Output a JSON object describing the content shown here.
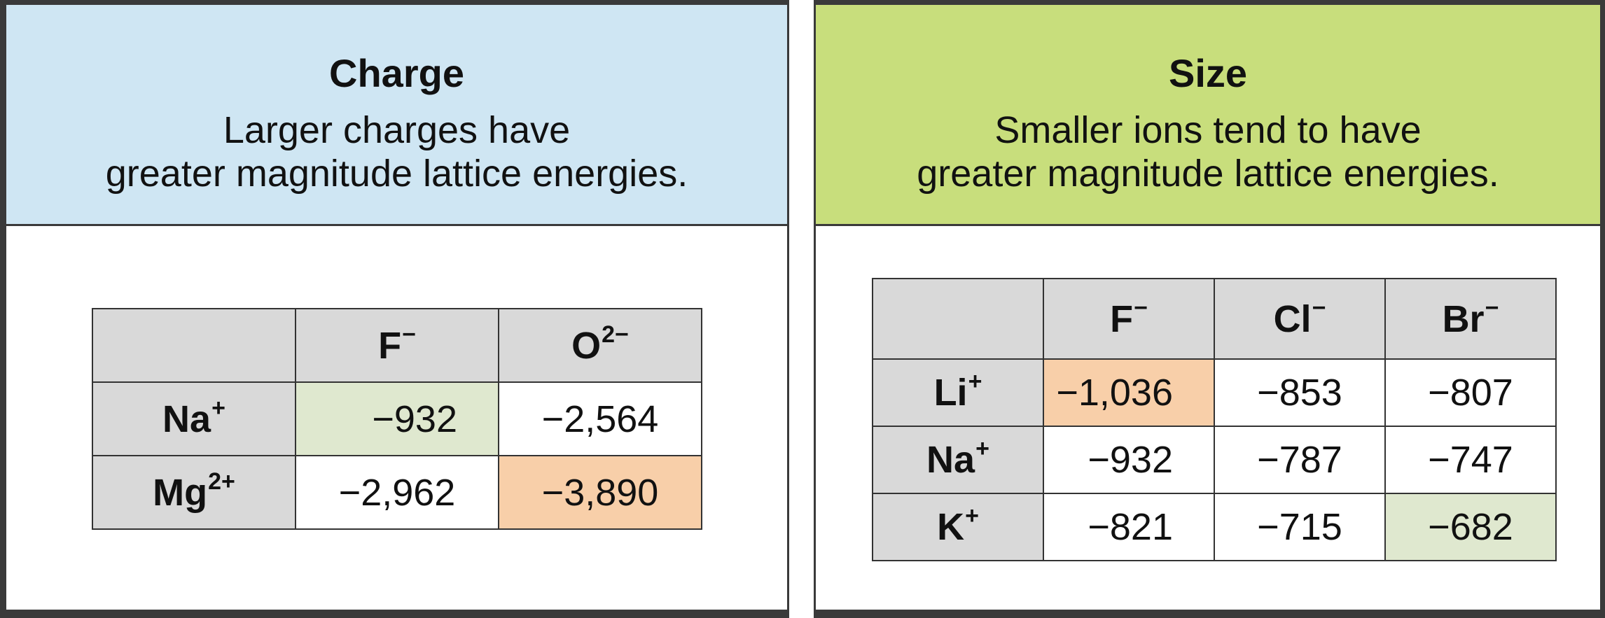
{
  "charge_panel": {
    "title": "Charge",
    "description_line1": "Larger charges have",
    "description_line2": "greater magnitude lattice energies.",
    "header_color": "#cfe6f3",
    "table": {
      "col_headers": [
        {
          "base": "F",
          "charge": "−"
        },
        {
          "base": "O",
          "charge": "2−"
        }
      ],
      "rows": [
        {
          "base": "Na",
          "charge": "+",
          "values": [
            "−932",
            "−2,564"
          ]
        },
        {
          "base": "Mg",
          "charge": "2+",
          "values": [
            "−2,962",
            "−3,890"
          ]
        }
      ]
    },
    "highlight_colors": {
      "green": "#dfe8cf",
      "orange": "#f8cfa9"
    }
  },
  "size_panel": {
    "title": "Size",
    "description_line1": "Smaller ions tend to have",
    "description_line2": "greater magnitude lattice energies.",
    "header_color": "#c8de7c",
    "table": {
      "col_headers": [
        {
          "base": "F",
          "charge": "−"
        },
        {
          "base": "Cl",
          "charge": "−"
        },
        {
          "base": "Br",
          "charge": "−"
        }
      ],
      "rows": [
        {
          "base": "Li",
          "charge": "+",
          "values": [
            "−1,036",
            "−853",
            "−807"
          ]
        },
        {
          "base": "Na",
          "charge": "+",
          "values": [
            "−932",
            "−787",
            "−747"
          ]
        },
        {
          "base": "K",
          "charge": "+",
          "values": [
            "−821",
            "−715",
            "−682"
          ]
        }
      ]
    }
  }
}
